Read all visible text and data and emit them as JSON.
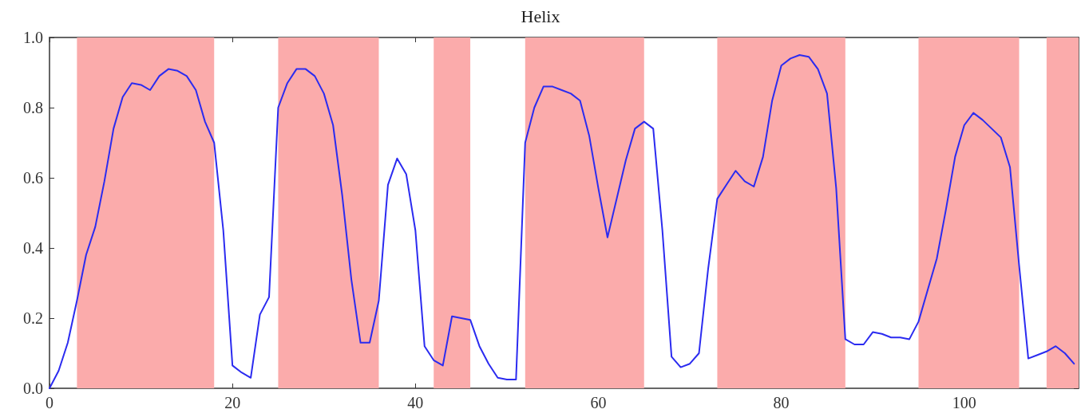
{
  "chart_data": {
    "type": "line",
    "title": "Helix",
    "x": [
      0,
      1,
      2,
      3,
      4,
      5,
      6,
      7,
      8,
      9,
      10,
      11,
      12,
      13,
      14,
      15,
      16,
      17,
      18,
      19,
      20,
      21,
      22,
      23,
      24,
      25,
      26,
      27,
      28,
      29,
      30,
      31,
      32,
      33,
      34,
      35,
      36,
      37,
      38,
      39,
      40,
      41,
      42,
      43,
      44,
      45,
      46,
      47,
      48,
      49,
      50,
      51,
      52,
      53,
      54,
      55,
      56,
      57,
      58,
      59,
      60,
      61,
      62,
      63,
      64,
      65,
      66,
      67,
      68,
      69,
      70,
      71,
      72,
      73,
      74,
      75,
      76,
      77,
      78,
      79,
      80,
      81,
      82,
      83,
      84,
      85,
      86,
      87,
      88,
      89,
      90,
      91,
      92,
      93,
      94,
      95,
      96,
      97,
      98,
      99,
      100,
      101,
      102,
      103,
      104,
      105,
      106,
      107,
      108,
      109,
      110,
      111,
      112
    ],
    "series": [
      {
        "color": "#2b2bf0",
        "values": [
          0.0,
          0.05,
          0.13,
          0.25,
          0.38,
          0.46,
          0.59,
          0.74,
          0.83,
          0.87,
          0.865,
          0.85,
          0.89,
          0.91,
          0.905,
          0.89,
          0.85,
          0.76,
          0.7,
          0.45,
          0.065,
          0.045,
          0.03,
          0.21,
          0.26,
          0.8,
          0.87,
          0.91,
          0.91,
          0.89,
          0.84,
          0.75,
          0.55,
          0.31,
          0.13,
          0.13,
          0.25,
          0.58,
          0.655,
          0.61,
          0.45,
          0.12,
          0.08,
          0.065,
          0.205,
          0.2,
          0.195,
          0.12,
          0.07,
          0.03,
          0.025,
          0.025,
          0.7,
          0.8,
          0.86,
          0.86,
          0.85,
          0.84,
          0.82,
          0.72,
          0.57,
          0.43,
          0.54,
          0.65,
          0.74,
          0.76,
          0.74,
          0.45,
          0.09,
          0.06,
          0.07,
          0.1,
          0.34,
          0.54,
          0.58,
          0.62,
          0.59,
          0.575,
          0.66,
          0.82,
          0.92,
          0.94,
          0.95,
          0.945,
          0.91,
          0.84,
          0.57,
          0.14,
          0.125,
          0.125,
          0.16,
          0.155,
          0.145,
          0.145,
          0.14,
          0.19,
          0.28,
          0.37,
          0.51,
          0.66,
          0.75,
          0.785,
          0.765,
          0.74,
          0.715,
          0.63,
          0.35,
          0.085,
          0.095,
          0.105,
          0.12,
          0.1,
          0.07
        ]
      }
    ],
    "xlim": [
      0,
      112.5
    ],
    "xticks": [
      0,
      20,
      40,
      60,
      80,
      100
    ],
    "ylim": [
      0,
      1
    ],
    "yticks": [
      {
        "value": 0,
        "label": "0.0"
      },
      {
        "value": 0.2,
        "label": "0.2"
      },
      {
        "value": 0.4,
        "label": "0.4"
      },
      {
        "value": 0.6,
        "label": "0.6"
      },
      {
        "value": 0.8,
        "label": "0.8"
      },
      {
        "value": 1,
        "label": "1.0"
      }
    ],
    "bands": [
      {
        "axis": "x",
        "from": 3,
        "to": 18,
        "color": "#fbabab"
      },
      {
        "axis": "x",
        "from": 25,
        "to": 36,
        "color": "#fbabab"
      },
      {
        "axis": "x",
        "from": 42,
        "to": 46,
        "color": "#fbabab"
      },
      {
        "axis": "x",
        "from": 52,
        "to": 65,
        "color": "#fbabab"
      },
      {
        "axis": "x",
        "from": 73,
        "to": 87,
        "color": "#fbabab"
      },
      {
        "axis": "x",
        "from": 95,
        "to": 106,
        "color": "#fbabab"
      },
      {
        "axis": "x",
        "from": 109,
        "to": 112.5,
        "color": "#fbabab"
      }
    ],
    "grid": false,
    "marker": "none",
    "line_style": "solid"
  }
}
